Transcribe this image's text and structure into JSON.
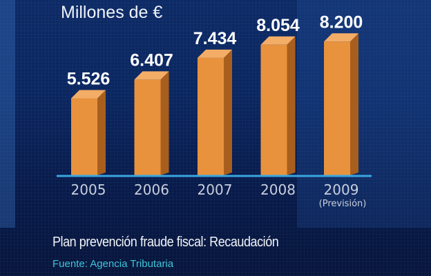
{
  "chart_data": {
    "type": "bar",
    "title": "Plan prevención fraude fiscal: Recaudación",
    "source": "Fuente: Agencia Tributaria",
    "ylabel": "Millones de €",
    "categories": [
      "2005",
      "2006",
      "2007",
      "2008",
      "2009"
    ],
    "category_notes": [
      "",
      "",
      "",
      "",
      "(Previsión)"
    ],
    "values": [
      5526,
      6407,
      7434,
      8054,
      8200
    ],
    "value_labels": [
      "5.526",
      "6.407",
      "7.434",
      "8.054",
      "8.200"
    ],
    "ylim": [
      1900,
      8600
    ],
    "grid": false,
    "colors": {
      "bar_front": "#e8923e",
      "bar_top": "#f4ad66",
      "bar_side": "#a85f1e",
      "axis": "#3aa6e0",
      "label": "#ffffff",
      "tick": "#c9cfdc"
    }
  }
}
